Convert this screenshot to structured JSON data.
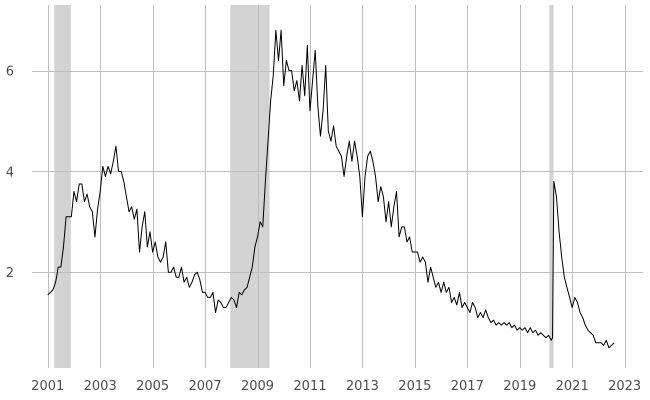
{
  "chart_data": {
    "type": "line",
    "title": "",
    "xlabel": "",
    "ylabel": "",
    "xlim": [
      2000.4,
      2023.7
    ],
    "ylim": [
      0.1,
      7.3
    ],
    "x_ticks": [
      2001,
      2003,
      2005,
      2007,
      2009,
      2011,
      2013,
      2015,
      2017,
      2019,
      2021,
      2023
    ],
    "x_tick_labels": [
      "2001",
      "2003",
      "2005",
      "2007",
      "2009",
      "2011",
      "2013",
      "2015",
      "2017",
      "2019",
      "2021",
      "2023"
    ],
    "y_ticks": [
      2,
      4,
      6
    ],
    "y_tick_labels": [
      "2",
      "4",
      "6"
    ],
    "grid": true,
    "recession_shading": [
      {
        "start": 2001.25,
        "end": 2001.88
      },
      {
        "start": 2007.96,
        "end": 2009.46
      },
      {
        "start": 2020.13,
        "end": 2020.29
      }
    ],
    "series": [
      {
        "color": "#000000",
        "points": [
          [
            2001.0,
            1.55
          ],
          [
            2001.1,
            1.6
          ],
          [
            2001.2,
            1.65
          ],
          [
            2001.3,
            1.8
          ],
          [
            2001.4,
            2.1
          ],
          [
            2001.5,
            2.1
          ],
          [
            2001.6,
            2.5
          ],
          [
            2001.7,
            3.1
          ],
          [
            2001.8,
            3.1
          ],
          [
            2001.9,
            3.1
          ],
          [
            2002.0,
            3.6
          ],
          [
            2002.1,
            3.4
          ],
          [
            2002.2,
            3.75
          ],
          [
            2002.3,
            3.75
          ],
          [
            2002.4,
            3.4
          ],
          [
            2002.5,
            3.55
          ],
          [
            2002.6,
            3.3
          ],
          [
            2002.7,
            3.2
          ],
          [
            2002.8,
            2.7
          ],
          [
            2002.9,
            3.25
          ],
          [
            2003.0,
            3.6
          ],
          [
            2003.1,
            4.1
          ],
          [
            2003.2,
            3.9
          ],
          [
            2003.3,
            4.1
          ],
          [
            2003.4,
            3.95
          ],
          [
            2003.5,
            4.2
          ],
          [
            2003.6,
            4.5
          ],
          [
            2003.7,
            4.0
          ],
          [
            2003.8,
            4.0
          ],
          [
            2003.9,
            3.8
          ],
          [
            2004.0,
            3.5
          ],
          [
            2004.1,
            3.2
          ],
          [
            2004.2,
            3.3
          ],
          [
            2004.3,
            3.05
          ],
          [
            2004.4,
            3.25
          ],
          [
            2004.5,
            2.4
          ],
          [
            2004.6,
            2.9
          ],
          [
            2004.7,
            3.2
          ],
          [
            2004.8,
            2.5
          ],
          [
            2004.9,
            2.8
          ],
          [
            2005.0,
            2.4
          ],
          [
            2005.1,
            2.6
          ],
          [
            2005.2,
            2.3
          ],
          [
            2005.3,
            2.2
          ],
          [
            2005.4,
            2.3
          ],
          [
            2005.5,
            2.6
          ],
          [
            2005.6,
            2.0
          ],
          [
            2005.7,
            2.0
          ],
          [
            2005.8,
            2.1
          ],
          [
            2005.9,
            1.9
          ],
          [
            2006.0,
            1.9
          ],
          [
            2006.1,
            2.1
          ],
          [
            2006.2,
            1.8
          ],
          [
            2006.3,
            1.9
          ],
          [
            2006.4,
            1.7
          ],
          [
            2006.5,
            1.8
          ],
          [
            2006.6,
            1.95
          ],
          [
            2006.7,
            2.0
          ],
          [
            2006.8,
            1.85
          ],
          [
            2006.9,
            1.6
          ],
          [
            2007.0,
            1.6
          ],
          [
            2007.1,
            1.5
          ],
          [
            2007.2,
            1.5
          ],
          [
            2007.3,
            1.6
          ],
          [
            2007.4,
            1.2
          ],
          [
            2007.5,
            1.45
          ],
          [
            2007.6,
            1.4
          ],
          [
            2007.7,
            1.3
          ],
          [
            2007.8,
            1.3
          ],
          [
            2007.9,
            1.4
          ],
          [
            2008.0,
            1.5
          ],
          [
            2008.1,
            1.45
          ],
          [
            2008.2,
            1.3
          ],
          [
            2008.3,
            1.6
          ],
          [
            2008.4,
            1.55
          ],
          [
            2008.5,
            1.65
          ],
          [
            2008.6,
            1.7
          ],
          [
            2008.7,
            1.9
          ],
          [
            2008.8,
            2.1
          ],
          [
            2008.9,
            2.5
          ],
          [
            2009.0,
            2.7
          ],
          [
            2009.1,
            3.0
          ],
          [
            2009.2,
            2.9
          ],
          [
            2009.3,
            3.8
          ],
          [
            2009.4,
            4.6
          ],
          [
            2009.5,
            5.4
          ],
          [
            2009.6,
            5.9
          ],
          [
            2009.7,
            6.8
          ],
          [
            2009.8,
            6.2
          ],
          [
            2009.9,
            6.8
          ],
          [
            2010.0,
            5.7
          ],
          [
            2010.1,
            6.2
          ],
          [
            2010.2,
            6.0
          ],
          [
            2010.3,
            6.0
          ],
          [
            2010.4,
            5.6
          ],
          [
            2010.5,
            5.8
          ],
          [
            2010.6,
            5.4
          ],
          [
            2010.7,
            6.1
          ],
          [
            2010.8,
            5.5
          ],
          [
            2010.9,
            6.5
          ],
          [
            2011.0,
            5.2
          ],
          [
            2011.1,
            5.8
          ],
          [
            2011.2,
            6.4
          ],
          [
            2011.3,
            5.3
          ],
          [
            2011.4,
            4.7
          ],
          [
            2011.5,
            5.2
          ],
          [
            2011.6,
            6.1
          ],
          [
            2011.7,
            4.8
          ],
          [
            2011.8,
            4.6
          ],
          [
            2011.9,
            4.9
          ],
          [
            2012.0,
            4.5
          ],
          [
            2012.1,
            4.4
          ],
          [
            2012.2,
            4.3
          ],
          [
            2012.3,
            3.9
          ],
          [
            2012.4,
            4.3
          ],
          [
            2012.5,
            4.6
          ],
          [
            2012.6,
            4.2
          ],
          [
            2012.7,
            4.6
          ],
          [
            2012.8,
            4.3
          ],
          [
            2012.9,
            3.9
          ],
          [
            2013.0,
            3.1
          ],
          [
            2013.1,
            3.9
          ],
          [
            2013.2,
            4.3
          ],
          [
            2013.3,
            4.4
          ],
          [
            2013.4,
            4.2
          ],
          [
            2013.5,
            3.9
          ],
          [
            2013.6,
            3.4
          ],
          [
            2013.7,
            3.7
          ],
          [
            2013.8,
            3.5
          ],
          [
            2013.9,
            3.0
          ],
          [
            2014.0,
            3.4
          ],
          [
            2014.1,
            2.9
          ],
          [
            2014.2,
            3.3
          ],
          [
            2014.3,
            3.6
          ],
          [
            2014.4,
            2.7
          ],
          [
            2014.5,
            2.9
          ],
          [
            2014.6,
            2.9
          ],
          [
            2014.7,
            2.6
          ],
          [
            2014.8,
            2.7
          ],
          [
            2014.9,
            2.4
          ],
          [
            2015.0,
            2.4
          ],
          [
            2015.1,
            2.4
          ],
          [
            2015.2,
            2.2
          ],
          [
            2015.3,
            2.3
          ],
          [
            2015.4,
            2.2
          ],
          [
            2015.5,
            1.8
          ],
          [
            2015.6,
            2.1
          ],
          [
            2015.7,
            1.9
          ],
          [
            2015.8,
            1.7
          ],
          [
            2015.9,
            1.8
          ],
          [
            2016.0,
            1.6
          ],
          [
            2016.1,
            1.8
          ],
          [
            2016.2,
            1.6
          ],
          [
            2016.3,
            1.7
          ],
          [
            2016.4,
            1.4
          ],
          [
            2016.5,
            1.5
          ],
          [
            2016.6,
            1.35
          ],
          [
            2016.7,
            1.6
          ],
          [
            2016.8,
            1.3
          ],
          [
            2016.9,
            1.4
          ],
          [
            2017.0,
            1.3
          ],
          [
            2017.1,
            1.2
          ],
          [
            2017.2,
            1.4
          ],
          [
            2017.3,
            1.3
          ],
          [
            2017.4,
            1.1
          ],
          [
            2017.5,
            1.2
          ],
          [
            2017.6,
            1.1
          ],
          [
            2017.7,
            1.25
          ],
          [
            2017.8,
            1.1
          ],
          [
            2017.9,
            1.0
          ],
          [
            2018.0,
            1.05
          ],
          [
            2018.1,
            0.95
          ],
          [
            2018.2,
            1.0
          ],
          [
            2018.3,
            0.95
          ],
          [
            2018.4,
            1.0
          ],
          [
            2018.5,
            0.95
          ],
          [
            2018.6,
            1.0
          ],
          [
            2018.7,
            0.9
          ],
          [
            2018.8,
            0.95
          ],
          [
            2018.9,
            0.85
          ],
          [
            2019.0,
            0.9
          ],
          [
            2019.1,
            0.85
          ],
          [
            2019.2,
            0.9
          ],
          [
            2019.3,
            0.8
          ],
          [
            2019.4,
            0.9
          ],
          [
            2019.5,
            0.8
          ],
          [
            2019.6,
            0.85
          ],
          [
            2019.7,
            0.75
          ],
          [
            2019.8,
            0.8
          ],
          [
            2019.9,
            0.75
          ],
          [
            2020.0,
            0.7
          ],
          [
            2020.1,
            0.75
          ],
          [
            2020.2,
            0.65
          ],
          [
            2020.25,
            0.7
          ],
          [
            2020.3,
            3.8
          ],
          [
            2020.4,
            3.5
          ],
          [
            2020.5,
            2.8
          ],
          [
            2020.6,
            2.3
          ],
          [
            2020.7,
            1.9
          ],
          [
            2020.8,
            1.7
          ],
          [
            2020.9,
            1.5
          ],
          [
            2021.0,
            1.3
          ],
          [
            2021.1,
            1.5
          ],
          [
            2021.2,
            1.4
          ],
          [
            2021.3,
            1.2
          ],
          [
            2021.4,
            1.1
          ],
          [
            2021.5,
            0.95
          ],
          [
            2021.6,
            0.85
          ],
          [
            2021.7,
            0.8
          ],
          [
            2021.8,
            0.75
          ],
          [
            2021.9,
            0.6
          ],
          [
            2022.0,
            0.6
          ],
          [
            2022.1,
            0.6
          ],
          [
            2022.2,
            0.55
          ],
          [
            2022.3,
            0.65
          ],
          [
            2022.4,
            0.5
          ],
          [
            2022.5,
            0.55
          ],
          [
            2022.6,
            0.6
          ]
        ]
      }
    ]
  }
}
